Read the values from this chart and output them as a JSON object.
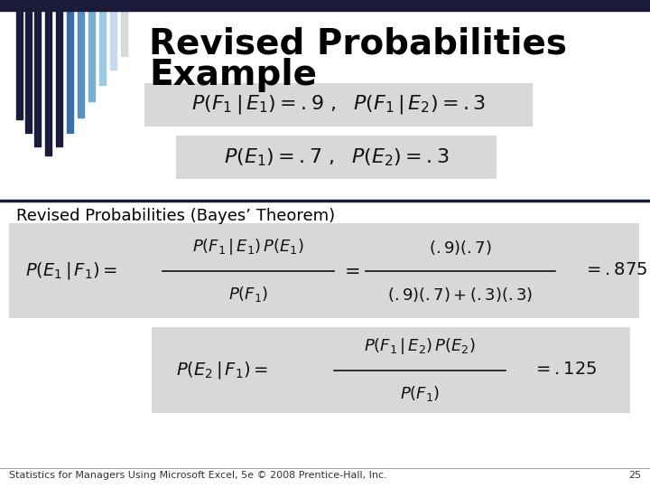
{
  "title_line1": "Revised Probabilities",
  "title_line2": "Example",
  "subtitle": "Revised Probabilities (Bayes’ Theorem)",
  "footer": "Statistics for Managers Using Microsoft Excel, 5e © 2008 Prentice-Hall, Inc.",
  "page_number": "25",
  "bg_color": "#ffffff",
  "header_bar_color": "#1a1a3a",
  "box_fill_color": "#d8d8d8",
  "title_color": "#000000",
  "subtitle_color": "#000000",
  "footer_color": "#333333",
  "divider_color": "#1a1a3a",
  "stripe_colors": [
    "#1a1a3a",
    "#1a1a3a",
    "#1a1a3a",
    "#1a1a3a",
    "#1a1a3a",
    "#3a6ea8",
    "#5b8fc4",
    "#7aafd4",
    "#9ecae1",
    "#c6dbef",
    "#d9d9d9"
  ],
  "title_fontsize": 28,
  "subtitle_fontsize": 13,
  "footer_fontsize": 8
}
